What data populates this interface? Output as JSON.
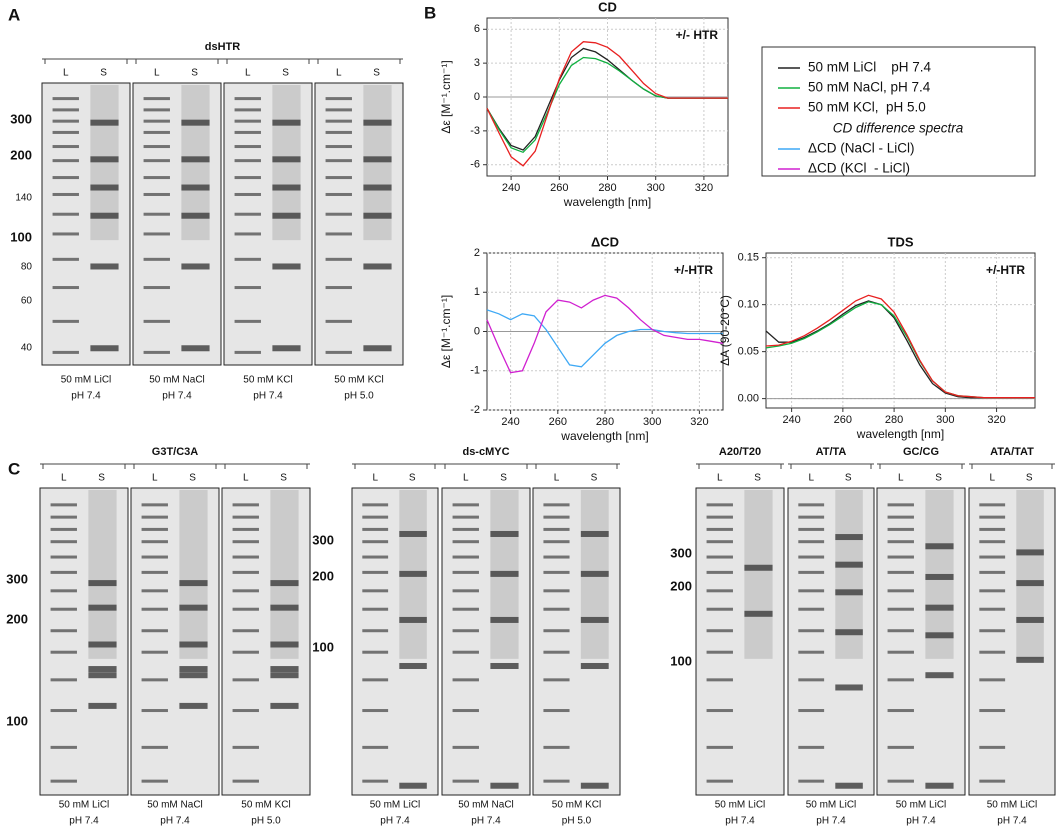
{
  "panel_labels": [
    "A",
    "B",
    "C"
  ],
  "gel_groups": [
    {
      "title": "dsHTR",
      "ladder": [
        "300",
        "200",
        "140",
        "100",
        "80",
        "60",
        "40"
      ],
      "gels": [
        {
          "lanes": [
            "L",
            "S"
          ],
          "condition": [
            "50 mM LiCl",
            "pH 7.4"
          ]
        },
        {
          "lanes": [
            "L",
            "S"
          ],
          "condition": [
            "50 mM NaCl",
            "pH 7.4"
          ]
        },
        {
          "lanes": [
            "L",
            "S"
          ],
          "condition": [
            "50 mM KCl",
            "pH 7.4"
          ]
        },
        {
          "lanes": [
            "L",
            "S"
          ],
          "condition": [
            "50 mM KCl",
            "pH 5.0"
          ]
        }
      ]
    },
    {
      "title": "G3T/C3A",
      "ladder": [
        "300",
        "200",
        "100"
      ],
      "gels": [
        {
          "lanes": [
            "L",
            "S"
          ],
          "condition": [
            "50 mM LiCl",
            "pH 7.4"
          ]
        },
        {
          "lanes": [
            "L",
            "S"
          ],
          "condition": [
            "50 mM NaCl",
            "pH 7.4"
          ]
        },
        {
          "lanes": [
            "L",
            "S"
          ],
          "condition": [
            "50 mM KCl",
            "pH 5.0"
          ]
        }
      ]
    },
    {
      "title": "ds-cMYC",
      "ladder": [
        "300",
        "200",
        "100"
      ],
      "gels": [
        {
          "lanes": [
            "L",
            "S"
          ],
          "condition": [
            "50 mM LiCl",
            "pH 7.4"
          ]
        },
        {
          "lanes": [
            "L",
            "S"
          ],
          "condition": [
            "50 mM NaCl",
            "pH 7.4"
          ]
        },
        {
          "lanes": [
            "L",
            "S"
          ],
          "condition": [
            "50 mM KCl",
            "pH 5.0"
          ]
        }
      ]
    },
    {
      "title": "A20/T20",
      "ladder": [
        "300",
        "200",
        "100"
      ],
      "gels": [
        {
          "lanes": [
            "L",
            "S"
          ],
          "condition": [
            "50 mM LiCl",
            "pH 7.4"
          ]
        }
      ]
    },
    {
      "title": "AT/TA",
      "ladder": [],
      "gels": [
        {
          "lanes": [
            "L",
            "S"
          ],
          "condition": [
            "50 mM LiCl",
            "pH 7.4"
          ]
        }
      ]
    },
    {
      "title": "GC/CG",
      "ladder": [],
      "gels": [
        {
          "lanes": [
            "L",
            "S"
          ],
          "condition": [
            "50 mM LiCl",
            "pH 7.4"
          ]
        }
      ]
    },
    {
      "title": "ATA/TAT",
      "ladder": [],
      "gels": [
        {
          "lanes": [
            "L",
            "S"
          ],
          "condition": [
            "50 mM LiCl",
            "pH 7.4"
          ]
        }
      ]
    }
  ],
  "chart_data": [
    {
      "type": "line",
      "title": "CD",
      "annotation": "+/- HTR",
      "x_label": "wavelength [nm]",
      "y_label": "Δε [M⁻¹.cm⁻¹]",
      "x": [
        230,
        235,
        240,
        245,
        250,
        255,
        260,
        265,
        270,
        275,
        280,
        285,
        290,
        295,
        300,
        305,
        310,
        315,
        320,
        325,
        330
      ],
      "xlim": [
        230,
        330
      ],
      "xticks": [
        240,
        260,
        280,
        300,
        320
      ],
      "ylim": [
        -7,
        7
      ],
      "yticks": [
        -6,
        -3,
        0,
        3,
        6
      ],
      "grid": true,
      "series": [
        {
          "name": "50 mM LiCl    pH 7.4",
          "color": "#222222",
          "values": [
            -1,
            -2.8,
            -4.3,
            -4.7,
            -3.5,
            -1,
            1.5,
            3.5,
            4.3,
            4.0,
            3.3,
            2.4,
            1.5,
            0.7,
            0.1,
            -0.1,
            -0.1,
            -0.1,
            -0.1,
            -0.1,
            -0.1
          ]
        },
        {
          "name": "50 mM NaCl, pH 7.4",
          "color": "#10b040",
          "values": [
            -1,
            -2.9,
            -4.5,
            -4.9,
            -3.8,
            -1.4,
            1.1,
            2.8,
            3.5,
            3.4,
            3.0,
            2.3,
            1.5,
            0.7,
            0.1,
            -0.1,
            -0.1,
            -0.1,
            -0.1,
            -0.1,
            -0.1
          ]
        },
        {
          "name": "50 mM KCl,  pH 5.0",
          "color": "#e82020",
          "values": [
            -1,
            -3.2,
            -5.3,
            -6.1,
            -4.8,
            -1.6,
            1.6,
            4.0,
            4.9,
            4.8,
            4.4,
            3.6,
            2.4,
            1.2,
            0.3,
            -0.1,
            -0.1,
            -0.1,
            -0.1,
            -0.1,
            -0.1
          ]
        }
      ]
    },
    {
      "type": "line",
      "title": "ΔCD",
      "annotation": "+/-HTR",
      "x_label": "wavelength [nm]",
      "y_label": "Δε [M⁻¹.cm⁻¹]",
      "legend_title": "CD difference spectra",
      "x": [
        230,
        235,
        240,
        245,
        250,
        255,
        260,
        265,
        270,
        275,
        280,
        285,
        290,
        295,
        300,
        305,
        310,
        315,
        320,
        325,
        330
      ],
      "xlim": [
        230,
        330
      ],
      "xticks": [
        240,
        260,
        280,
        300,
        320
      ],
      "ylim": [
        -2,
        2
      ],
      "yticks": [
        -2,
        -1,
        0,
        1,
        2
      ],
      "grid": true,
      "series": [
        {
          "name": "ΔCD (NaCl - LiCl)",
          "color": "#3fa9f5",
          "values": [
            0.55,
            0.45,
            0.3,
            0.45,
            0.4,
            0.05,
            -0.4,
            -0.85,
            -0.9,
            -0.6,
            -0.3,
            -0.1,
            0,
            0.05,
            0.05,
            0,
            -0.03,
            -0.05,
            -0.05,
            -0.05,
            -0.05
          ]
        },
        {
          "name": "ΔCD (KCl  - LiCl)",
          "color": "#d020d0",
          "values": [
            0.3,
            -0.4,
            -1.05,
            -1.0,
            -0.3,
            0.5,
            0.8,
            0.75,
            0.6,
            0.8,
            0.92,
            0.85,
            0.6,
            0.3,
            0.05,
            -0.1,
            -0.15,
            -0.2,
            -0.2,
            -0.25,
            -0.3
          ]
        }
      ]
    },
    {
      "type": "line",
      "title": "TDS",
      "annotation": "+/-HTR",
      "x_label": "wavelength [nm]",
      "y_label": "ΔA (90-20°C)",
      "x": [
        230,
        235,
        240,
        245,
        250,
        255,
        260,
        265,
        270,
        275,
        280,
        285,
        290,
        295,
        300,
        305,
        310,
        315,
        320,
        325,
        330,
        335
      ],
      "xlim": [
        230,
        335
      ],
      "xticks": [
        240,
        260,
        280,
        300,
        320
      ],
      "ylim": [
        -0.01,
        0.155
      ],
      "yticks": [
        {
          "value": 0,
          "label": "0.00"
        },
        {
          "value": 0.05,
          "label": "0.05"
        },
        {
          "value": 0.1,
          "label": "0.10"
        },
        {
          "value": 0.15,
          "label": "0.15"
        }
      ],
      "grid": true,
      "series": [
        {
          "name": "50 mM LiCl    pH 7.4",
          "color": "#222222",
          "values": [
            0.072,
            0.06,
            0.06,
            0.065,
            0.072,
            0.08,
            0.09,
            0.099,
            0.104,
            0.1,
            0.086,
            0.062,
            0.036,
            0.016,
            0.006,
            0.002,
            0.001,
            0.001,
            0.001,
            0.001,
            0.001,
            0.001
          ]
        },
        {
          "name": "50 mM NaCl, pH 7.4",
          "color": "#10b040",
          "values": [
            0.054,
            0.056,
            0.059,
            0.064,
            0.071,
            0.079,
            0.088,
            0.097,
            0.103,
            0.1,
            0.088,
            0.066,
            0.04,
            0.019,
            0.007,
            0.003,
            0.002,
            0.001,
            0.001,
            0.001,
            0.001,
            0.001
          ]
        },
        {
          "name": "50 mM KCl,  pH 5.0",
          "color": "#e82020",
          "values": [
            0.056,
            0.057,
            0.061,
            0.067,
            0.075,
            0.084,
            0.094,
            0.104,
            0.11,
            0.106,
            0.092,
            0.068,
            0.041,
            0.019,
            0.007,
            0.003,
            0.002,
            0.001,
            0.001,
            0.001,
            0.001,
            0.001
          ]
        }
      ]
    }
  ]
}
